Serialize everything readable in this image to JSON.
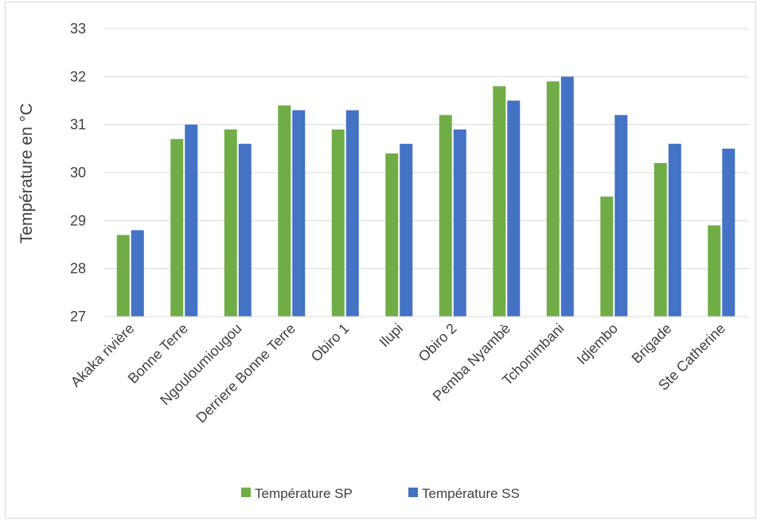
{
  "chart_data": {
    "type": "bar",
    "title": "",
    "xlabel": "",
    "ylabel": "Température en °C",
    "ylim": [
      27,
      33
    ],
    "yticks": [
      27,
      28,
      29,
      30,
      31,
      32,
      33
    ],
    "grid": true,
    "legend_position": "bottom",
    "categories": [
      "Akaka rivière",
      "Bonne Terre",
      "Ngouloumiougou",
      "Derriere Bonne Terre",
      "Obiro 1",
      "Ilupi",
      "Obiro 2",
      "Pemba Nyambè",
      "Tchonimbani",
      "Idjembo",
      "Brigade",
      "Ste Catherine"
    ],
    "series": [
      {
        "name": "Température SP",
        "color": "#70ad47",
        "values": [
          28.7,
          30.7,
          30.9,
          31.4,
          30.9,
          30.4,
          31.2,
          31.8,
          31.9,
          29.5,
          30.2,
          28.9
        ]
      },
      {
        "name": "Température SS",
        "color": "#4472c4",
        "values": [
          28.8,
          31.0,
          30.6,
          31.3,
          31.3,
          30.6,
          30.9,
          31.5,
          32.0,
          31.2,
          30.6,
          30.5
        ]
      }
    ]
  }
}
